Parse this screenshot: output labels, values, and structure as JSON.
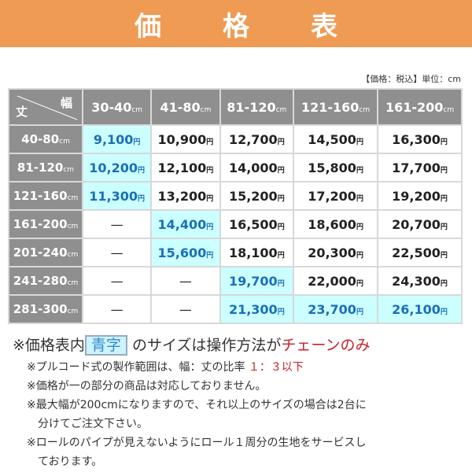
{
  "title": "価　格　表",
  "unit_note": "【価格：税込】単位：cm",
  "table": {
    "corner_height": "丈",
    "corner_width": "幅",
    "unit": "cm",
    "yen": "円",
    "dash": "—",
    "columns": [
      "30-40",
      "41-80",
      "81-120",
      "121-160",
      "161-200"
    ],
    "rows": [
      {
        "label": "40-80",
        "cells": [
          "9,100",
          "10,900",
          "12,700",
          "14,500",
          "16,300"
        ],
        "blue": [
          0
        ]
      },
      {
        "label": "81-120",
        "cells": [
          "10,200",
          "12,100",
          "14,000",
          "15,800",
          "17,700"
        ],
        "blue": [
          0
        ]
      },
      {
        "label": "121-160",
        "cells": [
          "11,300",
          "13,200",
          "15,200",
          "17,200",
          "19,200"
        ],
        "blue": [
          0
        ]
      },
      {
        "label": "161-200",
        "cells": [
          null,
          "14,400",
          "16,500",
          "18,600",
          "20,700"
        ],
        "blue": [
          1
        ]
      },
      {
        "label": "201-240",
        "cells": [
          null,
          "15,600",
          "18,100",
          "20,300",
          "22,500"
        ],
        "blue": [
          1
        ]
      },
      {
        "label": "241-280",
        "cells": [
          null,
          null,
          "19,700",
          "22,000",
          "24,300"
        ],
        "blue": [
          2
        ]
      },
      {
        "label": "281-300",
        "cells": [
          null,
          null,
          "21,300",
          "23,700",
          "26,100"
        ],
        "blue": [
          2,
          3,
          4
        ]
      }
    ]
  },
  "notes": {
    "main_prefix": "※価格表内",
    "main_highlight": "青字",
    "main_mid": "のサイズは操作方法が",
    "main_red": "チェーンのみ",
    "n1": "※プルコード式の製作範囲は、幅：丈の比率",
    "n1_red": "１：３以下",
    "n2": "※価格が一の部分の商品は対応しておりません。",
    "n3a": "※最大幅が200cmになりますので、それ以上のサイズの場合は2台に",
    "n3b": "分けてご注文下さい。",
    "n4a": "※ロールのパイプが見えないようにロール１周分の生地をサービスし",
    "n4b": "ております。"
  },
  "colors": {
    "banner": "#ef9b54",
    "header": "#8f8f8f",
    "blue_bg": "#ccffff",
    "blue_text": "#1a6fb8",
    "red": "#c8202a"
  }
}
